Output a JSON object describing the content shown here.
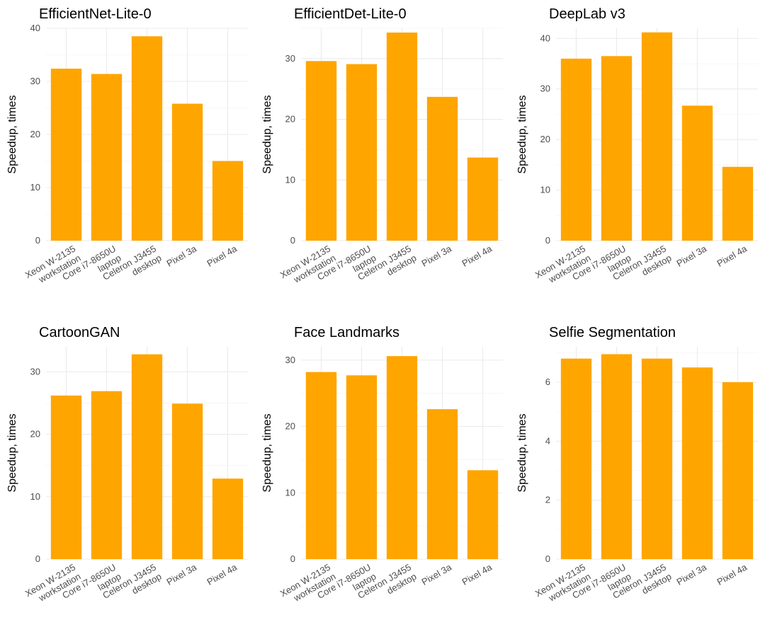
{
  "chart_data": [
    {
      "type": "bar",
      "title": "EfficientNet-Lite-0",
      "ylabel": "Speedup, times",
      "xlabel": "",
      "categories": [
        [
          "Xeon W-2135",
          "workstation"
        ],
        [
          "Core i7-8650U",
          "laptop"
        ],
        [
          "Celeron J3455",
          "desktop"
        ],
        [
          "Pixel 3a"
        ],
        [
          "Pixel 4a"
        ]
      ],
      "values": [
        32.4,
        31.4,
        38.5,
        25.8,
        15.0
      ],
      "ylim": [
        0,
        40
      ],
      "yticks": [
        0,
        10,
        20,
        30,
        40
      ],
      "color": "#FFA500"
    },
    {
      "type": "bar",
      "title": "EfficientDet-Lite-0",
      "ylabel": "Speedup, times",
      "xlabel": "",
      "categories": [
        [
          "Xeon W-2135",
          "workstation"
        ],
        [
          "Core i7-8650U",
          "laptop"
        ],
        [
          "Celeron J3455",
          "desktop"
        ],
        [
          "Pixel 3a"
        ],
        [
          "Pixel 4a"
        ]
      ],
      "values": [
        29.6,
        29.1,
        34.3,
        23.7,
        13.7
      ],
      "ylim": [
        0,
        35
      ],
      "yticks": [
        0,
        10,
        20,
        30
      ],
      "color": "#FFA500"
    },
    {
      "type": "bar",
      "title": "DeepLab v3",
      "ylabel": "Speedup, times",
      "xlabel": "",
      "categories": [
        [
          "Xeon W-2135",
          "workstation"
        ],
        [
          "Core i7-8650U",
          "laptop"
        ],
        [
          "Celeron J3455",
          "desktop"
        ],
        [
          "Pixel 3a"
        ],
        [
          "Pixel 4a"
        ]
      ],
      "values": [
        36.0,
        36.5,
        41.2,
        26.7,
        14.6
      ],
      "ylim": [
        0,
        42
      ],
      "yticks": [
        0,
        10,
        20,
        30,
        40
      ],
      "color": "#FFA500"
    },
    {
      "type": "bar",
      "title": "CartoonGAN",
      "ylabel": "Speedup, times",
      "xlabel": "",
      "categories": [
        [
          "Xeon W-2135",
          "workstation"
        ],
        [
          "Core i7-8650U",
          "laptop"
        ],
        [
          "Celeron J3455",
          "desktop"
        ],
        [
          "Pixel 3a"
        ],
        [
          "Pixel 4a"
        ]
      ],
      "values": [
        26.2,
        26.9,
        32.8,
        24.9,
        12.9
      ],
      "ylim": [
        0,
        34
      ],
      "yticks": [
        0,
        10,
        20,
        30
      ],
      "color": "#FFA500"
    },
    {
      "type": "bar",
      "title": "Face Landmarks",
      "ylabel": "Speedup, times",
      "xlabel": "",
      "categories": [
        [
          "Xeon W-2135",
          "workstation"
        ],
        [
          "Core i7-8650U",
          "laptop"
        ],
        [
          "Celeron J3455",
          "desktop"
        ],
        [
          "Pixel 3a"
        ],
        [
          "Pixel 4a"
        ]
      ],
      "values": [
        28.2,
        27.7,
        30.6,
        22.6,
        13.4
      ],
      "ylim": [
        0,
        32
      ],
      "yticks": [
        0,
        10,
        20,
        30
      ],
      "color": "#FFA500"
    },
    {
      "type": "bar",
      "title": "Selfie Segmentation",
      "ylabel": "Speedup, times",
      "xlabel": "",
      "categories": [
        [
          "Xeon W-2135",
          "workstation"
        ],
        [
          "Core i7-8650U",
          "laptop"
        ],
        [
          "Celeron J3455",
          "desktop"
        ],
        [
          "Pixel 3a"
        ],
        [
          "Pixel 4a"
        ]
      ],
      "values": [
        6.8,
        6.95,
        6.8,
        6.5,
        6.0
      ],
      "ylim": [
        0,
        7.2
      ],
      "yticks": [
        0,
        2,
        4,
        6
      ],
      "color": "#FFA500"
    }
  ]
}
